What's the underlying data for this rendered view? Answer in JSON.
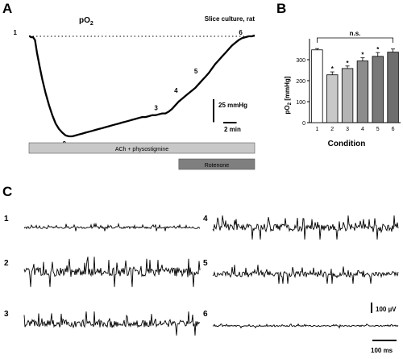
{
  "panel_letters": {
    "a": "A",
    "b": "B",
    "c": "C"
  },
  "chart_data": [
    {
      "type": "line",
      "panel": "A",
      "title_main": "pO",
      "title_sub": "2",
      "subtitle": "Slice culture, rat",
      "x": [
        0,
        0.15,
        0.3,
        0.6,
        0.9,
        1.2,
        1.6,
        2.0,
        2.5,
        3.0,
        3.5,
        4.0,
        4.5,
        5.0,
        5.5,
        6.0,
        6.5,
        7.0,
        7.5,
        8.0,
        8.5,
        9.0,
        9.5,
        10.0,
        10.5,
        11.0,
        11.5,
        12.0,
        12.5,
        13.0,
        13.5,
        14.0,
        14.5,
        15.0,
        15.5,
        16.0,
        16.5,
        17.0,
        17.5,
        18.0,
        18.5,
        19.0,
        19.5,
        20.0,
        20.5,
        21.0,
        21.5,
        22.0,
        22.5,
        23.0,
        23.5,
        24.0,
        24.5,
        25.0,
        25.5,
        26.0,
        26.5,
        27.0,
        27.5,
        28.0,
        28.5,
        29.0,
        29.5,
        30.0,
        30.5,
        31.0,
        31.5,
        32.0,
        32.5,
        33.0,
        33.5,
        33.9
      ],
      "y": [
        0,
        0,
        -1,
        -1,
        -4,
        -18,
        -33,
        -47,
        -62,
        -75,
        -86,
        -95,
        -101,
        -105,
        -108,
        -109,
        -109,
        -108,
        -107,
        -106,
        -105,
        -104,
        -103,
        -102,
        -101,
        -100,
        -99,
        -98,
        -97,
        -96,
        -95,
        -94,
        -93,
        -92,
        -91,
        -90,
        -89,
        -88,
        -88,
        -87,
        -86,
        -86,
        -85,
        -84,
        -84,
        -82,
        -79,
        -75,
        -71,
        -68,
        -65,
        -62,
        -59,
        -56,
        -52,
        -48,
        -44,
        -40,
        -35,
        -30,
        -26,
        -22,
        -18,
        -14,
        -10,
        -7,
        -4,
        -2,
        -1,
        0,
        0,
        1
      ],
      "baseline": 0,
      "markers": [
        {
          "label": "1",
          "x": 0.3,
          "y": 0
        },
        {
          "label": "2",
          "x": 6.0,
          "y": -109
        },
        {
          "label": "3",
          "x": 20.5,
          "y": -84
        },
        {
          "label": "4",
          "x": 23.5,
          "y": -65
        },
        {
          "label": "5",
          "x": 26.5,
          "y": -44
        },
        {
          "label": "6",
          "x": 32.5,
          "y": -1
        }
      ],
      "scalebar_y": {
        "value": 25,
        "label": "25 mmHg"
      },
      "scalebar_x": {
        "value": 2,
        "label": "2 min"
      },
      "treatments": [
        {
          "label": "ACh + physostigmine",
          "start": 0,
          "end": 33.9,
          "color": "#c8c8c8"
        },
        {
          "label": "Rotenone",
          "start": 22.5,
          "end": 33.9,
          "color": "#7f7f7f"
        }
      ]
    },
    {
      "type": "bar",
      "panel": "B",
      "categories": [
        "1",
        "2",
        "3",
        "4",
        "5",
        "6"
      ],
      "values": [
        347,
        228,
        258,
        294,
        316,
        336
      ],
      "errors": [
        6,
        14,
        12,
        15,
        18,
        15
      ],
      "significance": [
        "",
        "*",
        "*",
        "*",
        "*",
        ""
      ],
      "bracket_label": "n.s.",
      "colors": [
        "#ffffff",
        "#c8c8c8",
        "#b4b4b4",
        "#8c8c8c",
        "#787878",
        "#6e6e6e"
      ],
      "xlabel": "Condition",
      "ylabel_main": "pO",
      "ylabel_sub": "2",
      "ylabel_unit": " [mmHg]",
      "ylim": [
        0,
        400
      ],
      "yticks": [
        0,
        100,
        200,
        300
      ]
    }
  ],
  "traces": {
    "labels": [
      "1",
      "2",
      "3",
      "4",
      "5",
      "6"
    ],
    "amplitudes_uv": [
      28,
      120,
      95,
      95,
      75,
      15
    ],
    "scalebar_v": "100 µV",
    "scalebar_t": "100 ms"
  }
}
